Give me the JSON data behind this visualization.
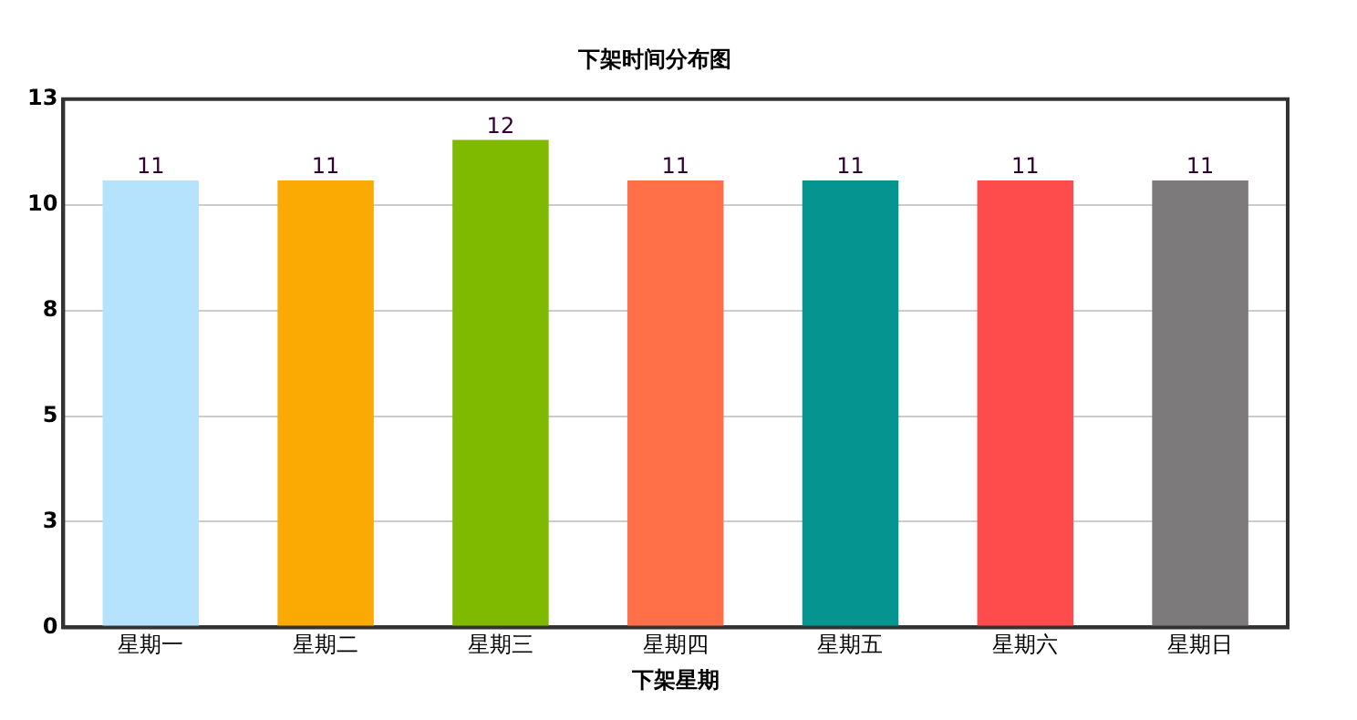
{
  "chart_data": {
    "type": "bar",
    "title": "下架时间分布图",
    "xlabel": "下架星期",
    "categories": [
      "星期一",
      "星期二",
      "星期三",
      "星期四",
      "星期五",
      "星期六",
      "星期日"
    ],
    "values": [
      11,
      11,
      12,
      11,
      11,
      11,
      11
    ],
    "colors": [
      "#b5e2fc",
      "#fbaa04",
      "#7fba00",
      "#ff7049",
      "#059490",
      "#fe4b4c",
      "#7c7a7b"
    ],
    "ylim": [
      0,
      13
    ],
    "yticks": [
      0,
      {
        "value": 2.6,
        "label": "3"
      },
      {
        "value": 5.2,
        "label": "5"
      },
      {
        "value": 7.8,
        "label": "8"
      },
      {
        "value": 10.4,
        "label": "10"
      },
      13
    ],
    "grid": "y",
    "data_labels": true,
    "legend": false
  }
}
